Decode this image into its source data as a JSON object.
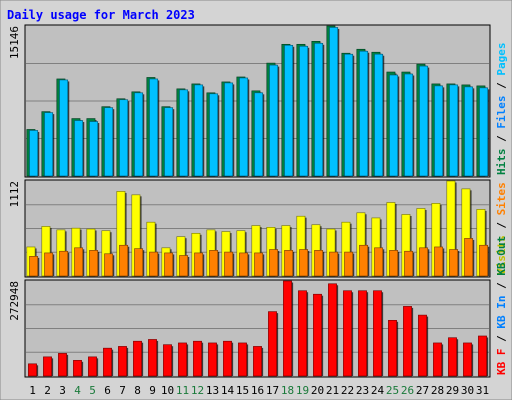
{
  "chart_data": {
    "type": "bar",
    "title": "Daily usage for March 2023",
    "categories": [
      "1",
      "2",
      "3",
      "4",
      "5",
      "6",
      "7",
      "8",
      "9",
      "10",
      "11",
      "12",
      "13",
      "14",
      "15",
      "16",
      "17",
      "18",
      "19",
      "20",
      "21",
      "22",
      "23",
      "24",
      "25",
      "26",
      "27",
      "28",
      "29",
      "30",
      "31"
    ],
    "weekend_days": [
      4,
      5,
      11,
      12,
      18,
      19,
      25,
      26
    ],
    "colors": {
      "background": "#ffffff",
      "frame": "#d4d4d4",
      "panel": "#c0c0c0",
      "title": "#0000ff",
      "ymax_label": "#000000",
      "weekday_tick": "#000000",
      "weekend_tick": "#1a7a3a"
    },
    "panels": [
      {
        "ymax_label": "15146",
        "ylim": [
          0,
          15146
        ],
        "legend": [
          {
            "text": "Hits",
            "color": "#008040"
          },
          {
            "text": "Files",
            "color": "#0080ff"
          },
          {
            "text": "Pages",
            "color": "#00c0ff"
          }
        ],
        "series": [
          {
            "name": "Hits",
            "color": "#008040",
            "values": [
              4700,
              6500,
              9800,
              5800,
              5800,
              7000,
              7800,
              8500,
              9950,
              7000,
              8800,
              9300,
              8400,
              9500,
              10000,
              8600,
              11400,
              13300,
              13300,
              13600,
              15146,
              12400,
              12800,
              12500,
              10500,
              10500,
              11300,
              9300,
              9300,
              9200,
              9100
            ]
          },
          {
            "name": "Files",
            "color": "#00c0ff",
            "values": [
              4600,
              6400,
              9700,
              5600,
              5500,
              6900,
              7700,
              8400,
              9800,
              6900,
              8700,
              9200,
              8300,
              9400,
              9900,
              8400,
              11200,
              13200,
              13100,
              13400,
              15000,
              12300,
              12600,
              12300,
              10200,
              10300,
              11100,
              9100,
              9200,
              9000,
              8900
            ]
          }
        ]
      },
      {
        "ymax_label": "1112",
        "ylim": [
          0,
          1112
        ],
        "legend": [
          {
            "text": "Visits",
            "color": "#c0c000"
          },
          {
            "text": "Sites",
            "color": "#ff8000"
          }
        ],
        "series": [
          {
            "name": "Visits",
            "color": "#ffff00",
            "values": [
              340,
              580,
              540,
              560,
              550,
              530,
              990,
              950,
              630,
              330,
              460,
              500,
              540,
              520,
              530,
              590,
              570,
              590,
              700,
              600,
              550,
              630,
              740,
              680,
              860,
              720,
              790,
              850,
              1112,
              1020,
              780
            ]
          },
          {
            "name": "Sites",
            "color": "#ff8000",
            "values": [
              230,
              270,
              290,
              330,
              300,
              260,
              360,
              320,
              280,
              270,
              240,
              270,
              300,
              280,
              270,
              270,
              310,
              300,
              310,
              300,
              280,
              280,
              360,
              330,
              300,
              290,
              330,
              340,
              310,
              440,
              360
            ]
          }
        ]
      },
      {
        "ymax_label": "272948",
        "ylim": [
          0,
          272948
        ],
        "legend": [
          {
            "text": "KB F",
            "color": "#ff0000"
          },
          {
            "text": "KB In",
            "color": "#0080ff"
          },
          {
            "text": "KB Out",
            "color": "#008040"
          }
        ],
        "series": [
          {
            "name": "KB F",
            "color": "#ff0000",
            "values": [
              35000,
              55000,
              65000,
              45000,
              55000,
              80000,
              85000,
              100000,
              105000,
              90000,
              95000,
              100000,
              95000,
              100000,
              95000,
              85000,
              185000,
              272948,
              245000,
              235000,
              265000,
              245000,
              245000,
              245000,
              160000,
              200000,
              175000,
              95000,
              110000,
              95000,
              115000
            ]
          }
        ]
      }
    ]
  }
}
